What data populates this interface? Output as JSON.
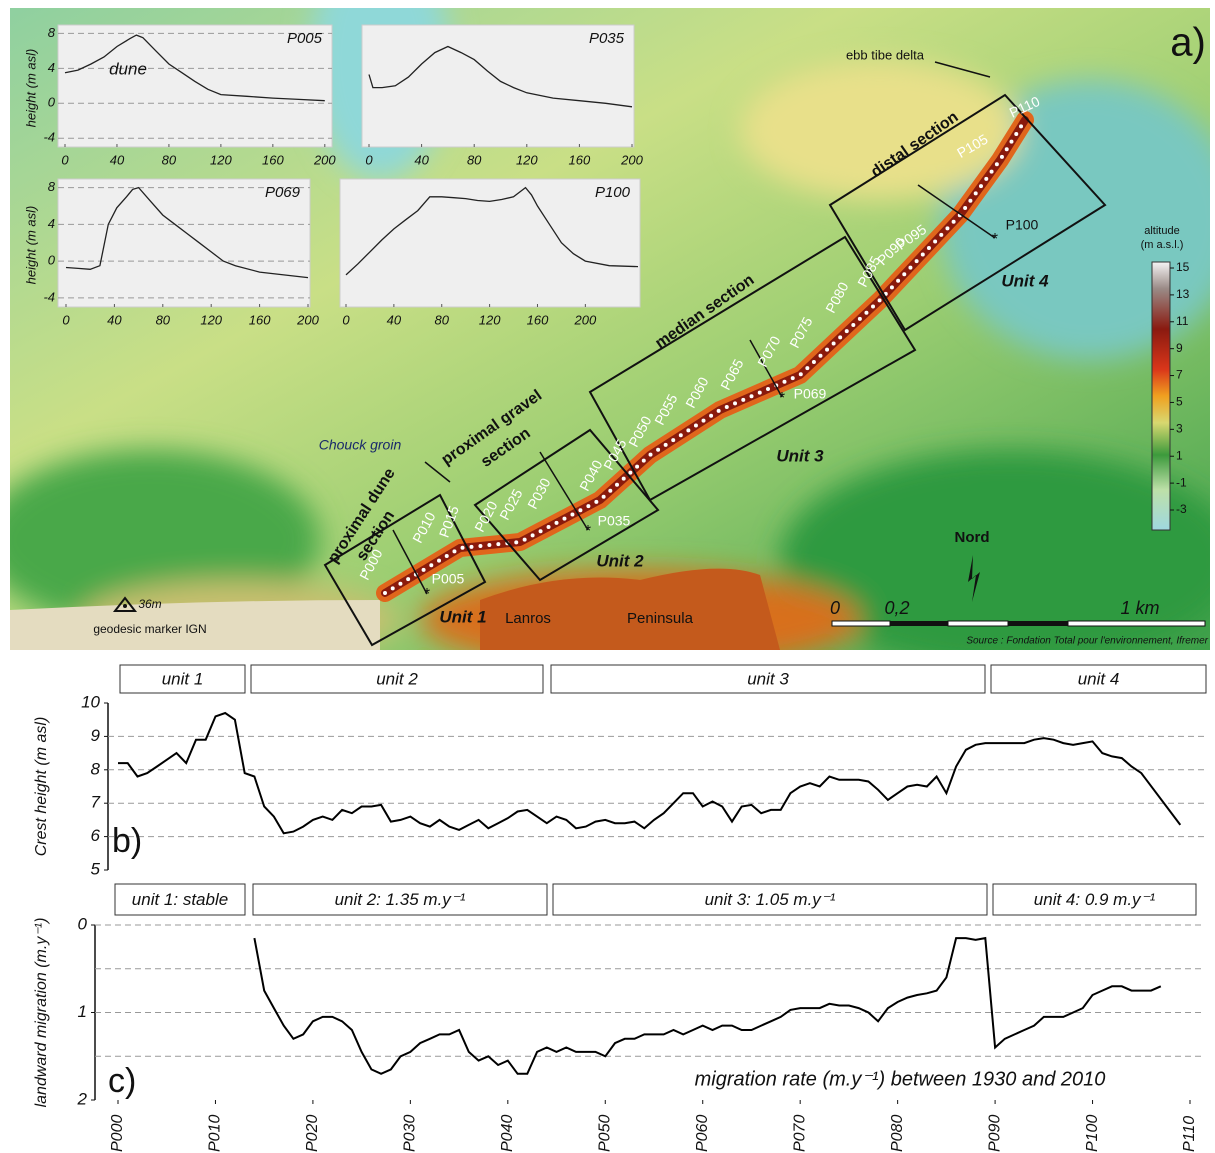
{
  "map": {
    "panel_label": "a)",
    "ebb_label": "ebb tibe delta",
    "sections": [
      [
        "distal section"
      ],
      [
        "median section"
      ],
      [
        "proximal gravel",
        "section"
      ],
      [
        "proximal dune",
        "section"
      ]
    ],
    "groin": "Chouck groin",
    "units": [
      "Unit 1",
      "Unit 2",
      "Unit 3",
      "Unit 4"
    ],
    "places": [
      "Lanros",
      "Peninsula"
    ],
    "marker_height": "36m",
    "marker_name": "geodesic marker IGN",
    "north": "Nord",
    "scale_labels": [
      "0",
      "0,2",
      "1 km"
    ],
    "source": "Source : Fondation Total pour l'environnement, Ifremer",
    "profile_labels": [
      "P000",
      "P010",
      "P015",
      "P020",
      "P025",
      "P030",
      "P040",
      "P045",
      "P050",
      "P055",
      "P060",
      "P065",
      "P070",
      "P075",
      "P080",
      "P085",
      "P090",
      "P095",
      "P105",
      "P110"
    ],
    "profile_markers": [
      "P005",
      "P035",
      "P069",
      "P100"
    ],
    "legend": {
      "title": [
        "altitude",
        "(m a.s.l.)"
      ],
      "ticks": [
        15,
        13,
        11,
        9,
        7,
        5,
        3,
        1,
        -1,
        -3
      ]
    }
  },
  "chart_data": [
    {
      "type": "line",
      "title": "P005",
      "ylabel": "height (m asl)",
      "annotation": "dune",
      "x": [
        0,
        10,
        20,
        30,
        40,
        50,
        55,
        60,
        70,
        80,
        90,
        100,
        110,
        120,
        140,
        160,
        180,
        200
      ],
      "values": [
        3.5,
        3.8,
        4.5,
        5.3,
        6.5,
        7.4,
        7.8,
        7.5,
        6,
        4.5,
        3.5,
        2.5,
        1.6,
        1,
        0.8,
        0.6,
        0.45,
        0.3
      ],
      "xlim": [
        0,
        204
      ],
      "ylim": [
        -5,
        8.5
      ],
      "xticks": [
        0,
        40,
        80,
        120,
        160,
        200
      ],
      "yticks": [
        8,
        4,
        0,
        -4
      ],
      "color": "#222222"
    },
    {
      "type": "line",
      "title": "P035",
      "x": [
        0,
        3,
        10,
        20,
        30,
        40,
        50,
        60,
        70,
        80,
        90,
        100,
        110,
        120,
        140,
        160,
        180,
        200
      ],
      "values": [
        3.3,
        1.8,
        1.8,
        2,
        3,
        4.5,
        5.8,
        6.5,
        5.8,
        5,
        3.7,
        2.5,
        1.8,
        1.2,
        0.6,
        0.3,
        0,
        -0.4
      ],
      "xlim": [
        0,
        200
      ],
      "ylim": [
        -5,
        8.5
      ],
      "xticks": [
        0,
        40,
        80,
        120,
        160,
        200
      ],
      "color": "#222222"
    },
    {
      "type": "line",
      "title": "P069",
      "ylabel": "height (m asl)",
      "x": [
        0,
        10,
        20,
        28,
        35,
        42,
        50,
        55,
        60,
        70,
        80,
        90,
        100,
        110,
        120,
        130,
        140,
        160,
        180,
        200
      ],
      "values": [
        -0.7,
        -0.8,
        -0.9,
        -0.5,
        4,
        5.8,
        7,
        7.8,
        8,
        6.5,
        5,
        4,
        3,
        2,
        1,
        0,
        -0.5,
        -1.2,
        -1.5,
        -1.8
      ],
      "xlim": [
        0,
        200
      ],
      "ylim": [
        -5,
        8.5
      ],
      "xticks": [
        0,
        40,
        80,
        120,
        160,
        200
      ],
      "yticks": [
        8,
        4,
        0,
        -4
      ],
      "color": "#222222"
    },
    {
      "type": "line",
      "title": "P100",
      "x": [
        0,
        10,
        20,
        30,
        40,
        50,
        60,
        70,
        80,
        90,
        100,
        110,
        120,
        130,
        140,
        150,
        155,
        160,
        170,
        180,
        190,
        200,
        220,
        244
      ],
      "values": [
        -1.5,
        -0.3,
        1,
        2.3,
        3.5,
        4.5,
        5.5,
        7,
        7,
        6.9,
        6.8,
        6.6,
        6.5,
        6.7,
        7,
        8,
        7.2,
        6,
        4,
        2,
        0.8,
        0,
        -0.5,
        -0.6
      ],
      "xlim": [
        0,
        244
      ],
      "ylim": [
        -5,
        8.5
      ],
      "xticks": [
        0,
        40,
        80,
        120,
        160,
        200
      ],
      "color": "#222222"
    },
    {
      "type": "line",
      "panel_label": "b)",
      "ylabel": "Crest height (m asl)",
      "unit_labels": [
        "unit 1",
        "unit 2",
        "unit 3",
        "unit 4"
      ],
      "x": [
        0,
        1,
        2,
        3,
        4,
        5,
        6,
        7,
        8,
        9,
        10,
        11,
        12,
        13,
        14,
        15,
        16,
        17,
        18,
        19,
        20,
        21,
        22,
        23,
        24,
        25,
        26,
        27,
        28,
        29,
        30,
        31,
        32,
        33,
        34,
        35,
        36,
        37,
        38,
        39,
        40,
        41,
        42,
        43,
        44,
        45,
        46,
        47,
        48,
        49,
        50,
        51,
        52,
        53,
        54,
        55,
        56,
        57,
        58,
        59,
        60,
        61,
        62,
        63,
        64,
        65,
        66,
        67,
        68,
        69,
        70,
        71,
        72,
        73,
        74,
        75,
        76,
        77,
        78,
        79,
        80,
        81,
        82,
        83,
        84,
        85,
        86,
        87,
        88,
        89,
        90,
        91,
        92,
        93,
        94,
        95,
        96,
        97,
        98,
        99,
        100,
        101,
        102,
        103,
        104,
        105,
        109
      ],
      "values": [
        8.2,
        8.2,
        7.8,
        7.9,
        8.1,
        8.3,
        8.5,
        8.2,
        8.9,
        8.9,
        9.6,
        9.7,
        9.5,
        7.9,
        7.8,
        6.9,
        6.6,
        6.1,
        6.15,
        6.3,
        6.5,
        6.6,
        6.5,
        6.8,
        6.7,
        6.9,
        6.9,
        6.95,
        6.45,
        6.5,
        6.6,
        6.4,
        6.3,
        6.5,
        6.3,
        6.2,
        6.35,
        6.5,
        6.25,
        6.4,
        6.55,
        6.75,
        6.8,
        6.6,
        6.4,
        6.6,
        6.5,
        6.25,
        6.3,
        6.45,
        6.5,
        6.4,
        6.4,
        6.45,
        6.25,
        6.5,
        6.7,
        7,
        7.3,
        7.3,
        6.9,
        7.05,
        6.9,
        6.45,
        6.9,
        6.95,
        6.7,
        6.8,
        6.8,
        7.3,
        7.5,
        7.6,
        7.5,
        7.8,
        7.7,
        7.7,
        7.7,
        7.65,
        7.4,
        7.1,
        7.3,
        7.5,
        7.55,
        7.5,
        7.8,
        7.3,
        8.1,
        8.6,
        8.75,
        8.8,
        8.8,
        8.8,
        8.8,
        8.8,
        8.9,
        8.95,
        8.9,
        8.8,
        8.75,
        8.8,
        8.85,
        8.5,
        8.4,
        8.35,
        8.1,
        7.9,
        6.35
      ],
      "xlim": [
        0,
        110
      ],
      "ylim": [
        5,
        10
      ],
      "yticks": [
        5,
        6,
        7,
        8,
        9,
        10
      ],
      "color": "#000000"
    },
    {
      "type": "line",
      "panel_label": "c)",
      "ylabel": "landward migration (m.y⁻¹)",
      "annotation": "migration rate (m.y⁻¹) between 1930 and 2010",
      "unit_labels": [
        "unit 1: stable",
        "unit 2: 1.35 m.y⁻¹",
        "unit 3: 1.05 m.y⁻¹",
        "unit 4: 0.9 m.y⁻¹"
      ],
      "x": [
        14,
        15,
        16,
        17,
        18,
        19,
        20,
        21,
        22,
        23,
        24,
        25,
        26,
        27,
        28,
        29,
        30,
        31,
        32,
        33,
        34,
        35,
        36,
        37,
        38,
        39,
        40,
        41,
        42,
        43,
        44,
        45,
        46,
        47,
        48,
        49,
        50,
        51,
        52,
        53,
        54,
        55,
        56,
        57,
        58,
        59,
        60,
        61,
        62,
        63,
        64,
        65,
        66,
        67,
        68,
        69,
        70,
        71,
        72,
        73,
        74,
        75,
        76,
        77,
        78,
        79,
        80,
        81,
        82,
        83,
        84,
        85,
        86,
        87,
        88,
        89,
        90,
        91,
        92,
        93,
        94,
        95,
        96,
        97,
        98,
        99,
        100,
        101,
        102,
        103,
        104,
        105,
        106,
        107
      ],
      "values": [
        0.15,
        0.75,
        0.95,
        1.15,
        1.3,
        1.25,
        1.1,
        1.05,
        1.05,
        1.1,
        1.2,
        1.45,
        1.65,
        1.7,
        1.65,
        1.5,
        1.45,
        1.35,
        1.3,
        1.25,
        1.25,
        1.2,
        1.45,
        1.55,
        1.5,
        1.6,
        1.55,
        1.7,
        1.7,
        1.45,
        1.4,
        1.45,
        1.4,
        1.45,
        1.45,
        1.45,
        1.5,
        1.35,
        1.3,
        1.3,
        1.25,
        1.25,
        1.25,
        1.2,
        1.25,
        1.2,
        1.15,
        1.2,
        1.15,
        1.15,
        1.2,
        1.2,
        1.15,
        1.1,
        1.05,
        0.97,
        0.95,
        0.95,
        0.95,
        0.9,
        0.92,
        0.92,
        0.95,
        1,
        1.1,
        0.95,
        0.88,
        0.83,
        0.8,
        0.78,
        0.75,
        0.6,
        0.15,
        0.15,
        0.17,
        0.15,
        1.4,
        1.3,
        1.25,
        1.2,
        1.15,
        1.05,
        1.05,
        1.05,
        1,
        0.95,
        0.8,
        0.75,
        0.7,
        0.7,
        0.75,
        0.75,
        0.75,
        0.7
      ],
      "xlim": [
        0,
        110
      ],
      "ylim": [
        0,
        2
      ],
      "y_inverted": true,
      "yticks": [
        0,
        1,
        2
      ],
      "yminor": [
        0.5,
        1.5
      ],
      "xticks": [
        {
          "value": 0,
          "label": "P000"
        },
        {
          "value": 10,
          "label": "P010"
        },
        {
          "value": 20,
          "label": "P020"
        },
        {
          "value": 30,
          "label": "P030"
        },
        {
          "value": 40,
          "label": "P040"
        },
        {
          "value": 50,
          "label": "P050"
        },
        {
          "value": 60,
          "label": "P060"
        },
        {
          "value": 70,
          "label": "P070"
        },
        {
          "value": 80,
          "label": "P080"
        },
        {
          "value": 90,
          "label": "P090"
        },
        {
          "value": 100,
          "label": "P100"
        },
        {
          "value": 110,
          "label": "P110"
        }
      ],
      "color": "#000000"
    }
  ]
}
